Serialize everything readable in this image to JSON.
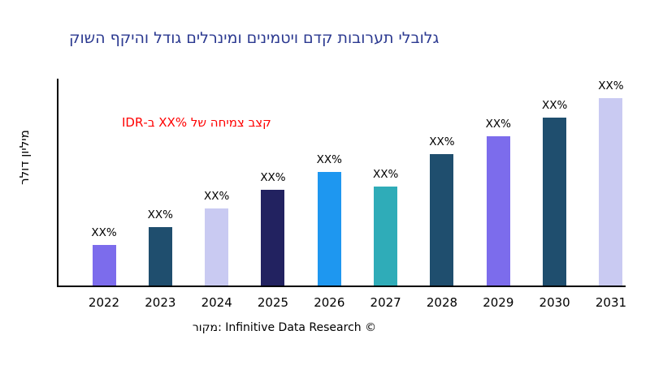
{
  "chart_data": {
    "type": "bar",
    "title": "גלובלי תערובות קדם ויטמינים ומינרלים גודל והיקף השוק",
    "ylabel": "מיליון דולר",
    "xlabel": "",
    "annotation": "קצב צמיחה של XX%‎ ב-IDR",
    "source": "מקור: Infinitive Data Research ©",
    "categories": [
      "2022",
      "2023",
      "2024",
      "2025",
      "2026",
      "2027",
      "2028",
      "2029",
      "2030",
      "2031"
    ],
    "bar_labels": [
      "XX%",
      "XX%",
      "XX%",
      "XX%",
      "XX%",
      "XX%",
      "XX%",
      "XX%",
      "XX%",
      "XX%"
    ],
    "relative_heights": [
      50,
      72,
      95,
      118,
      140,
      122,
      162,
      184,
      207,
      231
    ],
    "bar_colors": [
      "#7C6CEC",
      "#1F4E6E",
      "#C9CAF2",
      "#222260",
      "#1E97F0",
      "#2FACB8",
      "#1F4E6E",
      "#7C6CEC",
      "#1F4E6E",
      "#C9CAF2"
    ],
    "legend": "none",
    "grid": false,
    "note": "Numeric values are masked as XX% in the source image; relative_heights are proportional bar heights in pixels."
  },
  "colors": {
    "title": "#2B3990",
    "annotation": "#FF0000",
    "axis": "#000000",
    "background": "#FFFFFF"
  }
}
